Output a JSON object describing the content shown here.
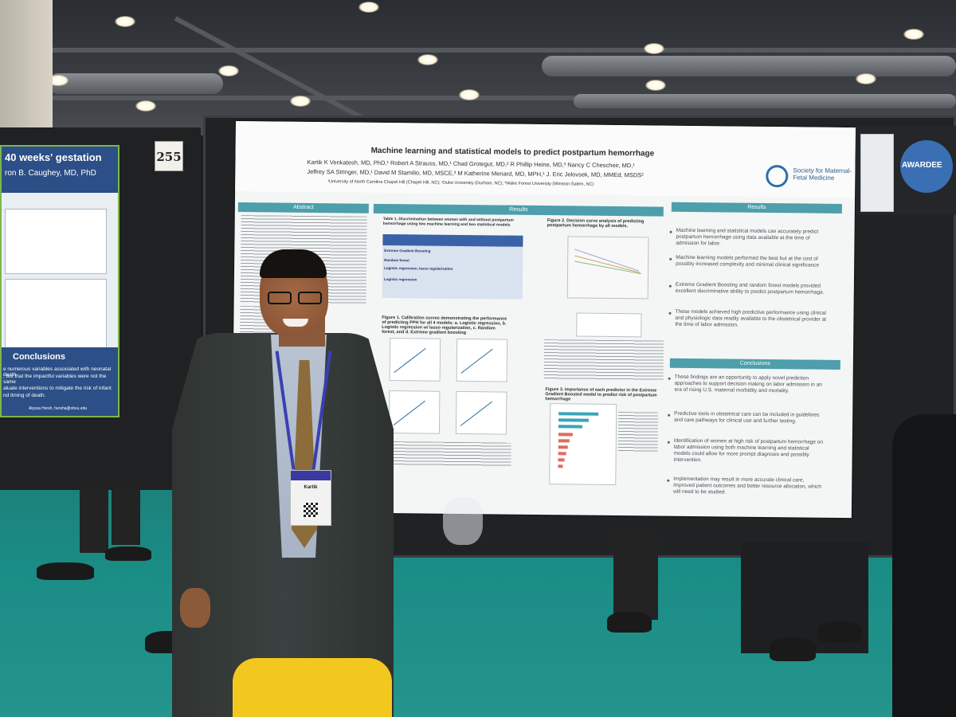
{
  "neighbor_poster": {
    "title": "40 weeks' gestation",
    "author": "ron B. Caughey, MD, PhD",
    "conclusions_heading": "Conclusions",
    "line1": "e numerous variables associated with neonatal death",
    "line2": ", but that the impactful variables were not the same",
    "line3": "aluate interventions to mitigate the risk of infant",
    "line4": "nd timing of death.",
    "email": "Alyssa Hersh, hersha@ohsu.edu"
  },
  "booth_number": "255",
  "poster": {
    "title": "Machine learning and statistical models to predict postpartum hemorrhage",
    "authors_line1": "Kartik K Venkatesh, MD, PhD,¹ Robert A Strauss, MD,¹ Chad Grotegut, MD,² R Phillip Heine, MD,³ Nancy C Chescheir, MD,¹",
    "authors_line2": "Jeffrey SA Stringer, MD,¹ David M Stamilio, MD, MSCE,³ M Katherine Menard, MD, MPH,¹ J. Eric Jelovsek, MD, MMEd, MSDS²",
    "affiliations": "¹University of North Carolina Chapel Hill (Chapel Hill, NC); ²Duke University (Durham, NC); ³Wake Forest University (Winston-Salem, NC)",
    "society_logo": "Society for Maternal-Fetal Medicine",
    "sections": {
      "abstract": "Abstract",
      "results_center": "Results",
      "results_right": "Results",
      "conclusions": "Conclusions"
    },
    "table1_caption": "Table 1. Discrimination between women with and without postpartum hemorrhage using two machine learning and two statistical models",
    "table_rows": [
      "Extreme Gradient Boosting",
      "Random forest",
      "Logistic regression, lasso regularization",
      "Logistic regression"
    ],
    "figure1_caption": "Figure 1. Calibration curves demonstrating the performance of predicting PPH for all 4 models: a. Logistic regression, b. Logistic regression w/ lasso regularization, c. Random forest, and d. Extreme gradient boosting",
    "figure2_caption": "Figure 2. Decision curve analysis of predicting postpartum hemorrhage by all models.",
    "figure3_caption": "Figure 3. Importance of each predictor in the Extreme Gradient Boosted model to predict risk of postpartum hemorrhage",
    "results_bullets": [
      "Machine learning and statistical models can accurately predict postpartum hemorrhage using data available at the time of admission for labor.",
      "Machine learning models performed the best but at the cost of possibly increased complexity and minimal clinical significance",
      "Extreme Gradient Boosting and random forest models provided excellent discriminative ability to predict postpartum hemorrhage.",
      "These models achieved high predictive performance using clinical and physiologic data readily available to the obstetrical provider at the time of labor admission."
    ],
    "conclusion_bullets": [
      "These findings are an opportunity to apply novel prediction approaches to support decision making on labor admission in an era of rising U.S. maternal morbidity and mortality.",
      "Predictive tools in obstetrical care can be included in guidelines and care pathways for clinical use and further testing.",
      "Identification of women at high risk of postpartum hemorrhage on labor admission using both machine learning and statistical models could allow for more prompt diagnosis and possibly intervention.",
      "Implementation may result in more accurate clinical care, improved patient outcomes and better resource allocation, which will need to be studied."
    ]
  },
  "award": {
    "text": "AWARDEE"
  },
  "name_badge": {
    "name": "Kartik"
  },
  "colors": {
    "poster_accent": "#4c9fab",
    "table_header": "#3a62a8",
    "floor": "#1a8d86",
    "neighbor_header": "#2b4f86"
  }
}
